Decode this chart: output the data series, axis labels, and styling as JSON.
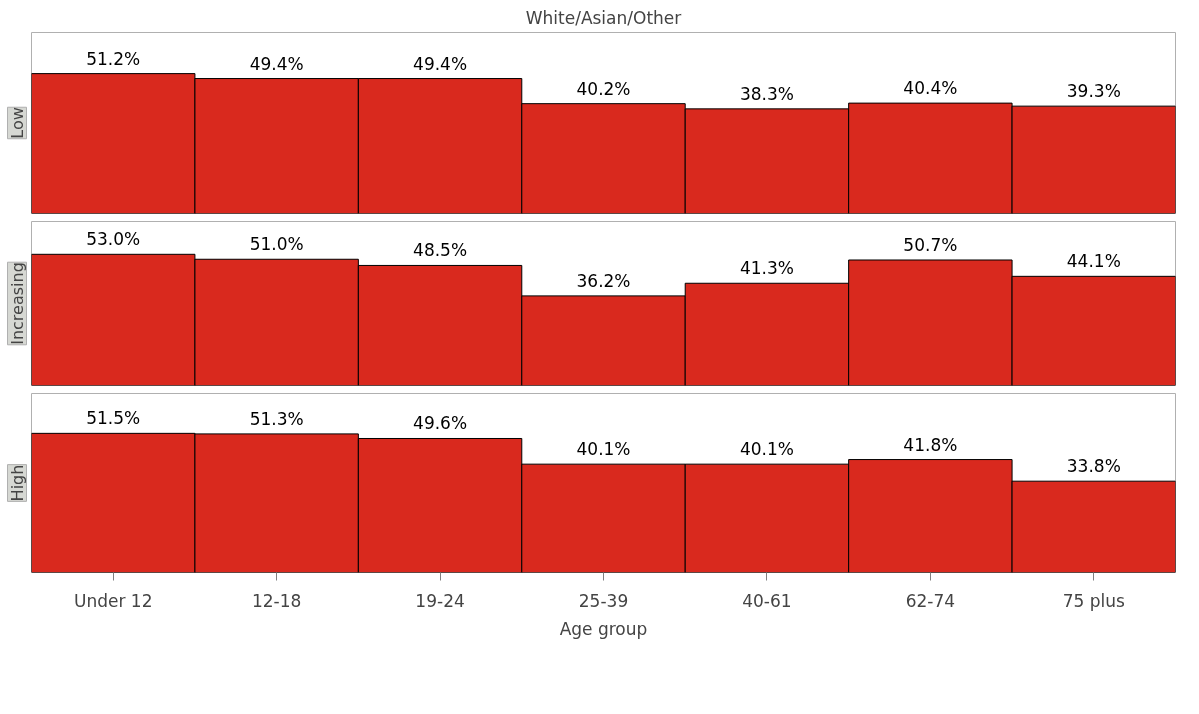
{
  "chart_data": [
    {
      "type": "bar",
      "title": "White/Asian/Other",
      "ylabel": "Low",
      "categories": [
        null,
        null,
        null,
        null,
        null,
        null,
        null
      ],
      "color": "#d9291e",
      "values": [
        51.2,
        49.4,
        49.4,
        40.2,
        38.3,
        40.4,
        39.3
      ],
      "value_labels": [
        "51.2%",
        "49.4%",
        "49.4%",
        "40.2%",
        "38.3%",
        "40.4%",
        "39.3%"
      ],
      "tick_labels": false
    },
    {
      "type": "bar",
      "ylabel": "Increasing",
      "categories": [
        null,
        null,
        null,
        null,
        null,
        null,
        null
      ],
      "color": "#d9291e",
      "values": [
        53.0,
        51.0,
        48.5,
        36.2,
        41.3,
        50.7,
        44.1
      ],
      "value_labels": [
        "53.0%",
        "51.0%",
        "48.5%",
        "36.2%",
        "41.3%",
        "50.7%",
        "44.1%"
      ],
      "tick_labels": false
    },
    {
      "type": "bar",
      "ylabel": "High",
      "xlabel": "Age group",
      "categories": [
        "Under 12",
        "12-18",
        "19-24",
        "25-39",
        "40-61",
        "62-74",
        "75 plus"
      ],
      "color": "#d9291e",
      "values": [
        51.5,
        51.3,
        49.6,
        40.1,
        40.1,
        41.8,
        33.8
      ],
      "value_labels": [
        "51.5%",
        "51.3%",
        "49.6%",
        "40.1%",
        "40.1%",
        "41.8%",
        "33.8%"
      ],
      "tick_labels": "x"
    }
  ]
}
